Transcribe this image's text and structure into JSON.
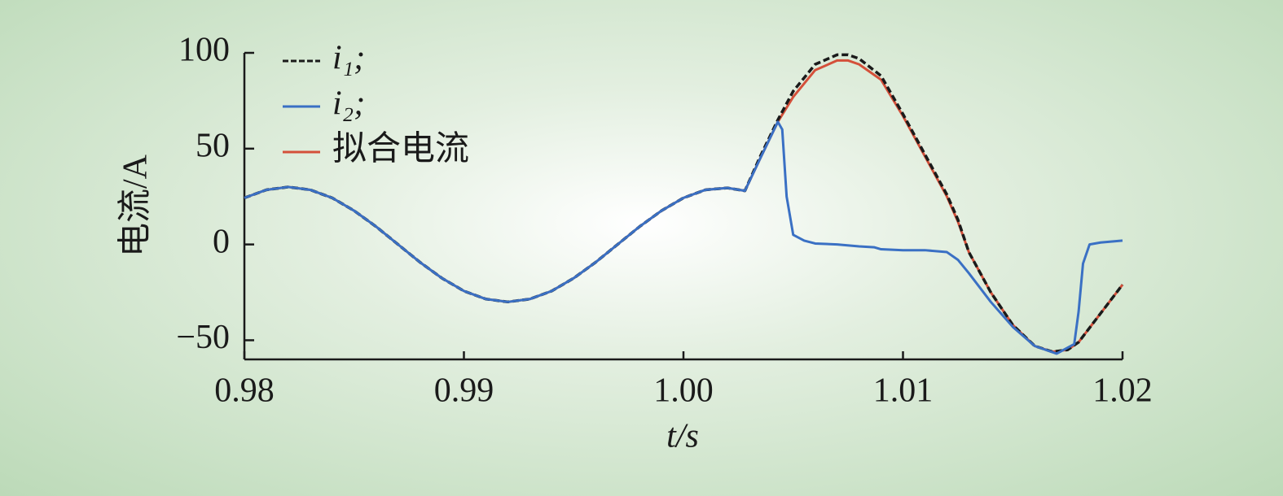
{
  "chart_data": {
    "type": "line",
    "xlabel": "t/s",
    "ylabel": "电流/A",
    "xlim": [
      0.98,
      1.02
    ],
    "ylim": [
      -60,
      100
    ],
    "xticks": [
      0.98,
      0.99,
      {
        "value": 1,
        "label": "1.00"
      },
      1.01,
      1.02
    ],
    "yticks": [
      {
        "value": -50,
        "label": "−50"
      },
      0,
      50,
      100
    ],
    "legend": "upper left",
    "series": [
      {
        "name": "拟合电流",
        "color": "#d4503a",
        "linestyle": "solid",
        "x": [
          0.98,
          0.981,
          0.982,
          0.983,
          0.984,
          0.985,
          0.986,
          0.987,
          0.988,
          0.989,
          0.99,
          0.991,
          0.992,
          0.993,
          0.994,
          0.995,
          0.996,
          0.997,
          0.998,
          0.999,
          1.0,
          1.001,
          1.002,
          1.0028,
          1.0035,
          1.0043,
          1.005,
          1.006,
          1.007,
          1.0075,
          1.008,
          1.009,
          1.01,
          1.011,
          1.012,
          1.0125,
          1.013,
          1.014,
          1.015,
          1.016,
          1.0168,
          1.0175,
          1.018,
          1.019,
          1.02
        ],
        "values": [
          24.3,
          28.5,
          30,
          28.5,
          24.3,
          17.6,
          9.3,
          0,
          -9.3,
          -17.6,
          -24.3,
          -28.5,
          -30,
          -28.5,
          -24.3,
          -17.6,
          -9.3,
          0,
          9.3,
          17.6,
          24.3,
          28.5,
          29.5,
          28,
          45,
          64,
          77,
          91,
          96,
          96,
          94,
          86,
          67,
          46,
          25,
          12,
          -4,
          -25,
          -42,
          -53,
          -56,
          -55,
          -51,
          -36,
          -21
        ]
      },
      {
        "name": "i₁;",
        "color": "#1a1a1a",
        "linestyle": "dashed",
        "x": [
          0.98,
          0.981,
          0.982,
          0.983,
          0.984,
          0.985,
          0.986,
          0.987,
          0.988,
          0.989,
          0.99,
          0.991,
          0.992,
          0.993,
          0.994,
          0.995,
          0.996,
          0.997,
          0.998,
          0.999,
          1.0,
          1.001,
          1.002,
          1.0028,
          1.0035,
          1.0043,
          1.005,
          1.006,
          1.007,
          1.0075,
          1.008,
          1.009,
          1.01,
          1.011,
          1.012,
          1.0125,
          1.013,
          1.014,
          1.015,
          1.016,
          1.0168,
          1.0175,
          1.018,
          1.019,
          1.02
        ],
        "values": [
          24.3,
          28.5,
          30,
          28.5,
          24.3,
          17.6,
          9.3,
          0,
          -9.3,
          -17.6,
          -24.3,
          -28.5,
          -30,
          -28.5,
          -24.3,
          -17.6,
          -9.3,
          0,
          9.3,
          17.6,
          24.3,
          28.5,
          29.5,
          28,
          46,
          65,
          80,
          94,
          99,
          99,
          97,
          88,
          68,
          47,
          26,
          13,
          -4,
          -25,
          -42,
          -53,
          -56,
          -55,
          -51,
          -36,
          -21
        ]
      },
      {
        "name": "i₂;",
        "color": "#3a70c4",
        "linestyle": "solid",
        "x": [
          0.98,
          0.981,
          0.982,
          0.983,
          0.984,
          0.985,
          0.986,
          0.987,
          0.988,
          0.989,
          0.99,
          0.991,
          0.992,
          0.993,
          0.994,
          0.995,
          0.996,
          0.997,
          0.998,
          0.999,
          1.0,
          1.001,
          1.002,
          1.0028,
          1.0035,
          1.0043,
          1.0045,
          1.0047,
          1.005,
          1.0055,
          1.006,
          1.007,
          1.008,
          1.0087,
          1.009,
          1.01,
          1.011,
          1.012,
          1.0125,
          1.013,
          1.014,
          1.015,
          1.016,
          1.017,
          1.0178,
          1.018,
          1.0182,
          1.0185,
          1.019,
          1.02
        ],
        "values": [
          24.3,
          28.5,
          30,
          28.5,
          24.3,
          17.6,
          9.3,
          0,
          -9.3,
          -17.6,
          -24.3,
          -28.5,
          -30,
          -28.5,
          -24.3,
          -17.6,
          -9.3,
          0,
          9.3,
          17.6,
          24.3,
          28.5,
          29.5,
          28,
          45,
          64,
          60,
          25,
          5,
          2,
          0.5,
          0,
          -1,
          -1.5,
          -2.5,
          -3,
          -3,
          -4,
          -8,
          -15,
          -30,
          -43,
          -53,
          -57,
          -52,
          -35,
          -10,
          0,
          1,
          2
        ]
      }
    ]
  }
}
